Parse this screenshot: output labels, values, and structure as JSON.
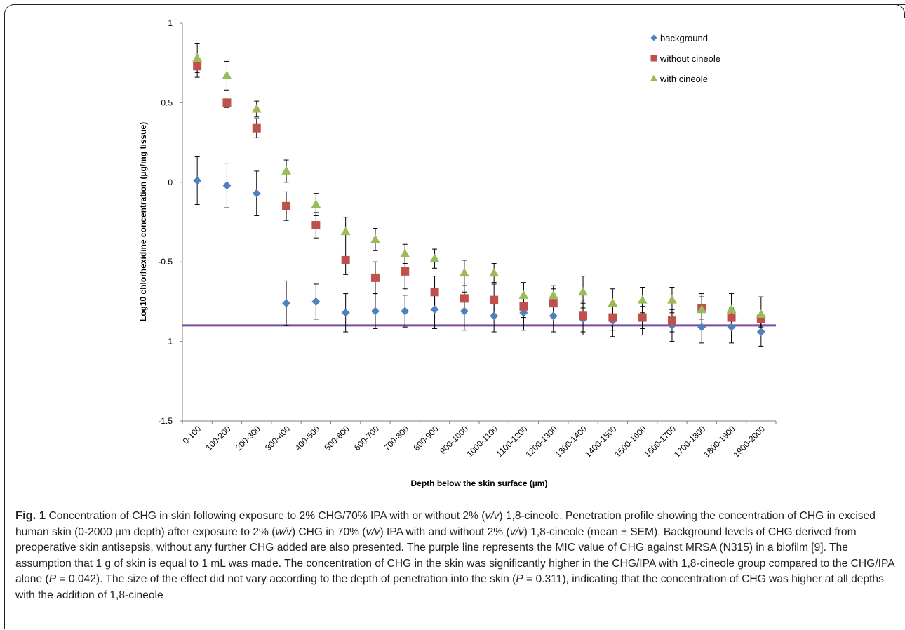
{
  "chart_data": {
    "type": "scatter",
    "xlabel": "Depth below the skin surface (µm)",
    "ylabel": "Log10 chlorhexidine concentration (µg/mg tissue)",
    "ylim": [
      -1.5,
      1
    ],
    "yticks": [
      1,
      0.5,
      0,
      -0.5,
      -1,
      -1.5
    ],
    "categories": [
      "0-100",
      "100-200",
      "200-300",
      "300-400",
      "400-500",
      "500-600",
      "600-700",
      "700-800",
      "800-900",
      "900-1000",
      "1000-1100",
      "1100-1200",
      "1200-1300",
      "1300-1400",
      "1400-1500",
      "1500-1600",
      "1600-1700",
      "1700-1800",
      "1800-1900",
      "1900-2000"
    ],
    "reference_line": {
      "y": -0.9,
      "color": "#7b4f9d"
    },
    "legend": "top-right",
    "series": [
      {
        "name": "background",
        "marker": "diamond",
        "color": "#4f81bd",
        "values": [
          0.01,
          -0.02,
          -0.07,
          -0.76,
          -0.75,
          -0.82,
          -0.81,
          -0.81,
          -0.8,
          -0.81,
          -0.84,
          -0.82,
          -0.84,
          -0.86,
          -0.87,
          -0.85,
          -0.9,
          -0.91,
          -0.91,
          -0.94
        ],
        "errors": [
          0.15,
          0.14,
          0.14,
          0.14,
          0.11,
          0.12,
          0.11,
          0.1,
          0.12,
          0.12,
          0.1,
          0.11,
          0.1,
          0.1,
          0.1,
          0.11,
          0.1,
          0.1,
          0.1,
          0.09
        ]
      },
      {
        "name": "without cineole",
        "marker": "square",
        "color": "#c0504d",
        "values": [
          0.73,
          0.5,
          0.34,
          -0.15,
          -0.27,
          -0.49,
          -0.6,
          -0.56,
          -0.69,
          -0.73,
          -0.74,
          -0.78,
          -0.76,
          -0.84,
          -0.85,
          -0.85,
          -0.87,
          -0.79,
          -0.85,
          -0.86
        ],
        "errors": [
          0.07,
          0.03,
          0.06,
          0.09,
          0.08,
          0.09,
          0.1,
          0.11,
          0.1,
          0.08,
          0.1,
          0.07,
          0.09,
          0.1,
          0.08,
          0.07,
          0.07,
          0.07,
          0.06,
          0.05
        ]
      },
      {
        "name": "with cineole",
        "marker": "triangle",
        "color": "#9bbb59",
        "values": [
          0.78,
          0.67,
          0.46,
          0.07,
          -0.14,
          -0.31,
          -0.36,
          -0.45,
          -0.48,
          -0.57,
          -0.57,
          -0.71,
          -0.71,
          -0.69,
          -0.76,
          -0.74,
          -0.74,
          -0.8,
          -0.8,
          -0.83
        ],
        "errors": [
          0.09,
          0.09,
          0.05,
          0.07,
          0.07,
          0.09,
          0.07,
          0.06,
          0.06,
          0.08,
          0.06,
          0.08,
          0.06,
          0.1,
          0.09,
          0.08,
          0.08,
          0.1,
          0.1,
          0.11
        ]
      }
    ]
  },
  "caption": {
    "fig_label": "Fig. 1",
    "text_html": "Concentration of CHG in skin following exposure to 2% CHG/70% IPA with or without 2% (<i>v/v</i>) 1,8-cineole. Penetration profile showing the concentration of CHG in excised human skin (0-2000 µm depth) after exposure to 2% (<i>w/v</i>) CHG in 70% (<i>v/v</i>) IPA with and without 2% (<i>v/v</i>) 1,8-cineole (mean ± SEM). Background levels of CHG derived from preoperative skin antisepsis, without any further CHG added are also presented. The purple line represents the MIC value of CHG against MRSA (N315) in a biofilm [9]. The assumption that 1 g of skin is equal to 1 mL was made. The concentration of CHG in the skin was significantly higher in the CHG/IPA with 1,8-cineole group compared to the CHG/IPA alone (<i>P</i> = 0.042). The size of the effect did not vary according to the depth of penetration into the skin (<i>P</i> = 0.311), indicating that the concentration of CHG was higher at all depths with the addition of 1,8-cineole"
  }
}
